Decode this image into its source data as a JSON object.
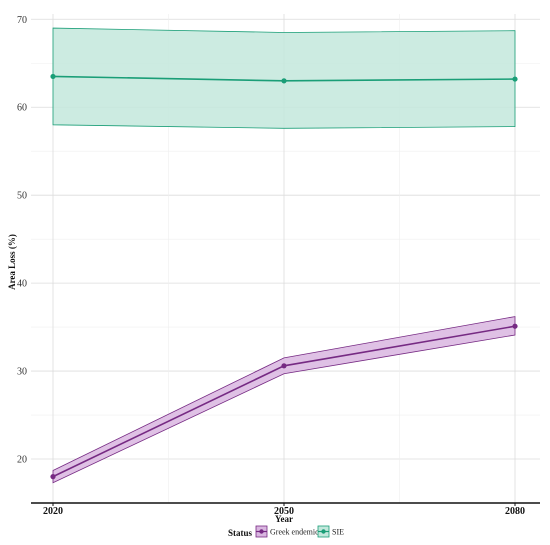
{
  "chart_data": {
    "type": "line",
    "xlabel": "Year",
    "ylabel": "Area Loss (%)",
    "x": [
      2020,
      2050,
      2080
    ],
    "xlim": [
      2020,
      2080
    ],
    "ylim": [
      15,
      70.6
    ],
    "yticks": [
      20,
      30,
      40,
      50,
      60,
      70
    ],
    "grid": true,
    "legend": {
      "title": "Status",
      "placement": "bottom"
    },
    "series": [
      {
        "name": "Greek endemic",
        "color": "#762a83",
        "fill": "#d9b6e0",
        "values": [
          18.0,
          30.6,
          35.1
        ],
        "lower": [
          17.3,
          29.7,
          34.1
        ],
        "upper": [
          18.7,
          31.5,
          36.2
        ]
      },
      {
        "name": "SIE",
        "color": "#1a9e77",
        "fill": "#c3e8dc",
        "values": [
          63.5,
          63.0,
          63.2
        ],
        "lower": [
          58.0,
          57.6,
          57.8
        ],
        "upper": [
          69.0,
          68.5,
          68.7
        ]
      }
    ]
  }
}
